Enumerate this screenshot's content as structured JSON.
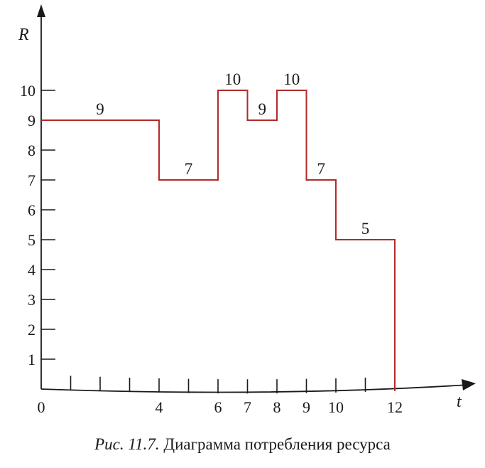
{
  "chart_data": {
    "type": "line",
    "step": true,
    "xlabel": "t",
    "ylabel": "R",
    "xlim": [
      0,
      12
    ],
    "ylim": [
      0,
      10
    ],
    "x_tick_step": 1,
    "x_tick_labels": [
      0,
      4,
      6,
      7,
      8,
      9,
      10,
      12
    ],
    "y_tick_labels": [
      1,
      2,
      3,
      4,
      5,
      6,
      7,
      8,
      9,
      10
    ],
    "segments": [
      {
        "x_start": 0,
        "x_end": 4,
        "value": 9
      },
      {
        "x_start": 4,
        "x_end": 6,
        "value": 7
      },
      {
        "x_start": 6,
        "x_end": 7,
        "value": 10
      },
      {
        "x_start": 7,
        "x_end": 8,
        "value": 9
      },
      {
        "x_start": 8,
        "x_end": 9,
        "value": 10
      },
      {
        "x_start": 9,
        "x_end": 10,
        "value": 7
      },
      {
        "x_start": 10,
        "x_end": 12,
        "value": 5
      }
    ],
    "grid": false,
    "legend": "none",
    "line_color": "#b22a2a",
    "axis_color": "#1a1a1a"
  },
  "caption": {
    "figure_number": "Рис. 11.7.",
    "text": "Диаграмма потребления ресурса"
  }
}
